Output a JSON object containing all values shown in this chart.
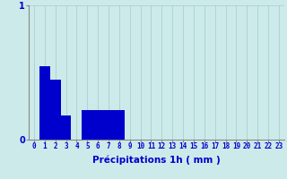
{
  "xlabel": "Précipitations 1h ( mm )",
  "ylabel": "",
  "background_color": "#cdeaea",
  "bar_color": "#0000cc",
  "xlim": [
    -0.5,
    23.5
  ],
  "ylim": [
    0,
    1.0
  ],
  "yticks": [
    0,
    1
  ],
  "xticks": [
    0,
    1,
    2,
    3,
    4,
    5,
    6,
    7,
    8,
    9,
    10,
    11,
    12,
    13,
    14,
    15,
    16,
    17,
    18,
    19,
    20,
    21,
    22,
    23
  ],
  "hours": [
    0,
    1,
    2,
    3,
    4,
    5,
    6,
    7,
    8,
    9,
    10,
    11,
    12,
    13,
    14,
    15,
    16,
    17,
    18,
    19,
    20,
    21,
    22,
    23
  ],
  "values": [
    0.0,
    0.55,
    0.45,
    0.18,
    0.0,
    0.22,
    0.22,
    0.22,
    0.22,
    0.0,
    0.0,
    0.0,
    0.0,
    0.0,
    0.0,
    0.0,
    0.0,
    0.0,
    0.0,
    0.0,
    0.0,
    0.0,
    0.0,
    0.0
  ],
  "grid_color": "#aacfcf",
  "spine_color": "#888888",
  "tick_color": "#0000cc",
  "tick_fontsize": 5.5,
  "xlabel_fontsize": 7.5,
  "xlabel_color": "#0000cc",
  "xlabel_fontweight": "bold",
  "ytick_fontsize": 7
}
